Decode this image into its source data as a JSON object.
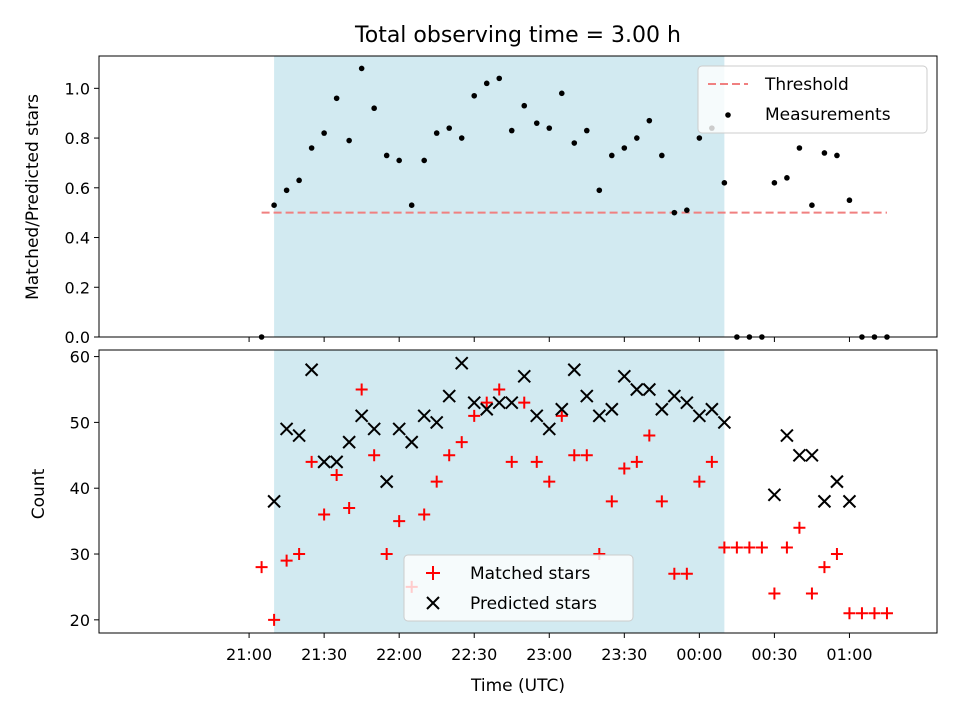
{
  "chart_data": [
    {
      "type": "scatter",
      "title": "Total observing time = 3.00 h",
      "ylabel": "Matched/Predicted stars",
      "ylim": [
        0,
        1.13
      ],
      "yticks": [
        "0.0",
        "0.2",
        "0.4",
        "0.6",
        "0.8",
        "1.0"
      ],
      "grid": false,
      "legend_position": "top-right",
      "shaded_interval": [
        "21:10",
        "00:10"
      ],
      "shade_color": "#add8e6",
      "threshold": {
        "name": "Threshold",
        "value": 0.5,
        "x_range": [
          "21:05",
          "01:15"
        ],
        "color": "#f08080"
      },
      "series": [
        {
          "name": "Measurements",
          "color": "#000000",
          "x": [
            "21:05",
            "21:10",
            "21:15",
            "21:20",
            "21:25",
            "21:30",
            "21:35",
            "21:40",
            "21:45",
            "21:50",
            "21:55",
            "22:00",
            "22:05",
            "22:10",
            "22:15",
            "22:20",
            "22:25",
            "22:30",
            "22:35",
            "22:40",
            "22:45",
            "22:50",
            "22:55",
            "23:00",
            "23:05",
            "23:10",
            "23:15",
            "23:20",
            "23:25",
            "23:30",
            "23:35",
            "23:40",
            "23:45",
            "23:50",
            "23:55",
            "00:00",
            "00:05",
            "00:10",
            "00:15",
            "00:20",
            "00:25",
            "00:30",
            "00:35",
            "00:40",
            "00:45",
            "00:50",
            "00:55",
            "01:00",
            "01:05",
            "01:10",
            "01:15"
          ],
          "y": [
            0.0,
            0.53,
            0.59,
            0.63,
            0.76,
            0.82,
            0.96,
            0.79,
            1.08,
            0.92,
            0.73,
            0.71,
            0.53,
            0.71,
            0.82,
            0.84,
            0.8,
            0.97,
            1.02,
            1.04,
            0.83,
            0.93,
            0.86,
            0.84,
            0.98,
            0.78,
            0.83,
            0.59,
            0.73,
            0.76,
            0.8,
            0.87,
            0.73,
            0.5,
            0.51,
            0.8,
            0.84,
            0.62,
            0.0,
            0.0,
            0.0,
            0.62,
            0.64,
            0.76,
            0.53,
            0.74,
            0.73,
            0.55,
            0.0,
            0.0,
            0.0
          ]
        }
      ]
    },
    {
      "type": "scatter",
      "ylabel": "Count",
      "xlabel": "Time (UTC)",
      "ylim": [
        18,
        61
      ],
      "yticks": [
        "20",
        "30",
        "40",
        "50",
        "60"
      ],
      "xticks": [
        "21:00",
        "21:30",
        "22:00",
        "22:30",
        "23:00",
        "23:30",
        "00:00",
        "00:30",
        "01:00"
      ],
      "grid": false,
      "legend_position": "lower-center",
      "shaded_interval": [
        "21:10",
        "00:10"
      ],
      "series": [
        {
          "name": "Matched stars",
          "color": "#ff0000",
          "marker": "plus",
          "x": [
            "21:05",
            "21:10",
            "21:15",
            "21:20",
            "21:25",
            "21:30",
            "21:35",
            "21:40",
            "21:45",
            "21:50",
            "21:55",
            "22:00",
            "22:05",
            "22:10",
            "22:15",
            "22:20",
            "22:25",
            "22:30",
            "22:35",
            "22:40",
            "22:45",
            "22:50",
            "22:55",
            "23:00",
            "23:05",
            "23:10",
            "23:15",
            "23:20",
            "23:25",
            "23:30",
            "23:35",
            "23:40",
            "23:45",
            "23:50",
            "23:55",
            "00:00",
            "00:05",
            "00:10",
            "00:15",
            "00:20",
            "00:25",
            "00:30",
            "00:35",
            "00:40",
            "00:45",
            "00:50",
            "00:55",
            "01:00",
            "01:05",
            "01:10",
            "01:15"
          ],
          "y": [
            28,
            20,
            29,
            30,
            44,
            36,
            42,
            37,
            55,
            45,
            30,
            35,
            25,
            36,
            41,
            45,
            47,
            51,
            53,
            55,
            44,
            53,
            44,
            41,
            51,
            45,
            45,
            30,
            38,
            43,
            44,
            48,
            38,
            27,
            27,
            41,
            44,
            31,
            31,
            31,
            31,
            24,
            31,
            34,
            24,
            28,
            30,
            21,
            21,
            21,
            21
          ]
        },
        {
          "name": "Predicted stars",
          "color": "#000000",
          "marker": "x",
          "x": [
            "21:10",
            "21:15",
            "21:20",
            "21:25",
            "21:30",
            "21:35",
            "21:40",
            "21:45",
            "21:50",
            "21:55",
            "22:00",
            "22:05",
            "22:10",
            "22:15",
            "22:20",
            "22:25",
            "22:30",
            "22:35",
            "22:40",
            "22:45",
            "22:50",
            "22:55",
            "23:00",
            "23:05",
            "23:10",
            "23:15",
            "23:20",
            "23:25",
            "23:30",
            "23:35",
            "23:40",
            "23:45",
            "23:50",
            "23:55",
            "00:00",
            "00:05",
            "00:10",
            "00:30",
            "00:35",
            "00:40",
            "00:45",
            "00:50",
            "00:55",
            "01:00"
          ],
          "y": [
            38,
            49,
            48,
            58,
            44,
            44,
            47,
            51,
            49,
            41,
            49,
            47,
            51,
            50,
            54,
            59,
            53,
            52,
            53,
            53,
            57,
            51,
            49,
            52,
            58,
            54,
            51,
            52,
            57,
            55,
            55,
            52,
            54,
            53,
            51,
            52,
            50,
            39,
            48,
            45,
            45,
            38,
            41,
            38
          ]
        }
      ]
    }
  ]
}
